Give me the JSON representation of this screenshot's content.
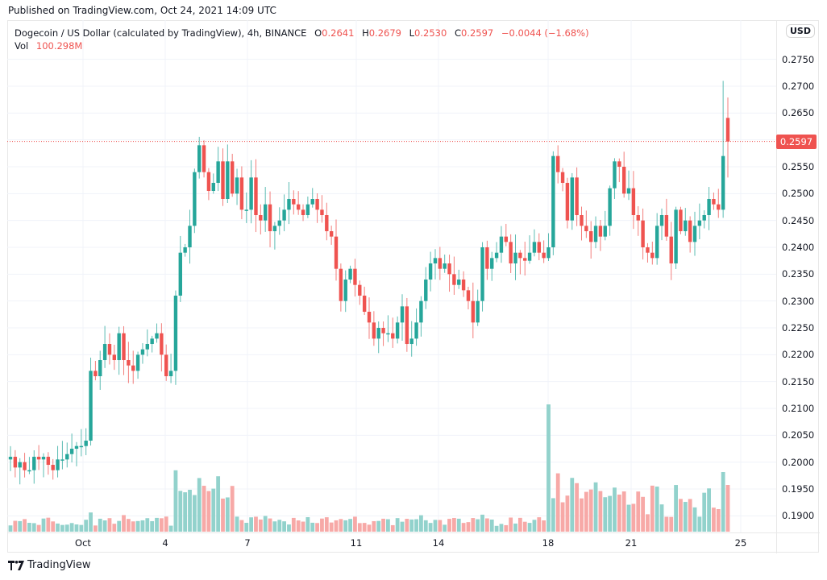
{
  "header": {
    "published": "Published on TradingView.com, Oct 24, 2021 14:09 UTC"
  },
  "legend": {
    "symbol": "Dogecoin / US Dollar (calculated by TradingView), 4h, BINANCE",
    "open_label": "O",
    "open": "0.2641",
    "high_label": "H",
    "high": "0.2679",
    "low_label": "L",
    "low": "0.2530",
    "close_label": "C",
    "close": "0.2597",
    "change": "−0.0044 (−1.68%)",
    "vol_label": "Vol",
    "vol": "100.298M"
  },
  "price_axis": {
    "currency_button": "USD",
    "ticks": [
      "0.2750",
      "0.2700",
      "0.2650",
      "0.2550",
      "0.2500",
      "0.2450",
      "0.2400",
      "0.2350",
      "0.2300",
      "0.2250",
      "0.2200",
      "0.2150",
      "0.2100",
      "0.2050",
      "0.2000",
      "0.1950",
      "0.1900"
    ],
    "last_price": "0.2597"
  },
  "time_axis": {
    "ticks": [
      "Oct",
      "4",
      "7",
      "11",
      "14",
      "18",
      "21",
      "25"
    ]
  },
  "footer": {
    "brand": "TradingView"
  },
  "colors": {
    "up": "#26a69a",
    "down": "#ef5350",
    "up_vol": "#92d2cc",
    "down_vol": "#f7a9a7",
    "grid": "#f0f3fa"
  },
  "chart_data": {
    "type": "candlestick",
    "title": "Dogecoin / US Dollar (calculated by TradingView), 4h, BINANCE",
    "interval": "4h",
    "x_ticks": [
      "Oct",
      "4",
      "7",
      "11",
      "14",
      "18",
      "21",
      "25"
    ],
    "y_ticks": [
      0.19,
      0.195,
      0.2,
      0.205,
      0.21,
      0.215,
      0.22,
      0.225,
      0.23,
      0.235,
      0.24,
      0.245,
      0.25,
      0.255,
      0.26,
      0.265,
      0.27,
      0.275
    ],
    "ylim": [
      0.1875,
      0.2775
    ],
    "last": {
      "open": 0.2641,
      "high": 0.2679,
      "low": 0.253,
      "close": 0.2597,
      "change": -0.0044,
      "change_pct": -1.68,
      "volume": "100.298M"
    },
    "closes": [
      0.201,
      0.199,
      0.2,
      0.1985,
      0.1985,
      0.201,
      0.2005,
      0.201,
      0.1995,
      0.1985,
      0.2005,
      0.2005,
      0.2015,
      0.2025,
      0.203,
      0.203,
      0.204,
      0.217,
      0.216,
      0.219,
      0.222,
      0.22,
      0.219,
      0.224,
      0.219,
      0.218,
      0.217,
      0.22,
      0.221,
      0.222,
      0.223,
      0.224,
      0.22,
      0.216,
      0.217,
      0.231,
      0.239,
      0.24,
      0.244,
      0.254,
      0.259,
      0.254,
      0.2505,
      0.252,
      0.256,
      0.249,
      0.256,
      0.25,
      0.253,
      0.247,
      0.247,
      0.253,
      0.246,
      0.245,
      0.248,
      0.243,
      0.244,
      0.245,
      0.247,
      0.249,
      0.248,
      0.247,
      0.246,
      0.248,
      0.249,
      0.247,
      0.246,
      0.243,
      0.242,
      0.236,
      0.23,
      0.234,
      0.236,
      0.233,
      0.231,
      0.228,
      0.226,
      0.223,
      0.225,
      0.224,
      0.224,
      0.223,
      0.226,
      0.229,
      0.222,
      0.223,
      0.226,
      0.23,
      0.234,
      0.237,
      0.238,
      0.236,
      0.237,
      0.235,
      0.233,
      0.234,
      0.232,
      0.23,
      0.226,
      0.23,
      0.24,
      0.236,
      0.238,
      0.239,
      0.242,
      0.241,
      0.237,
      0.239,
      0.238,
      0.2375,
      0.239,
      0.241,
      0.239,
      0.238,
      0.24,
      0.257,
      0.254,
      0.252,
      0.245,
      0.253,
      0.246,
      0.244,
      0.243,
      0.241,
      0.244,
      0.242,
      0.244,
      0.251,
      0.256,
      0.255,
      0.25,
      0.251,
      0.246,
      0.245,
      0.24,
      0.239,
      0.238,
      0.244,
      0.246,
      0.242,
      0.237,
      0.247,
      0.243,
      0.245,
      0.241,
      0.244,
      0.245,
      0.246,
      0.249,
      0.248,
      0.247,
      0.257,
      0.2597
    ],
    "volume_note": "Volume histogram beneath candles; peak around Oct 18 (~2.2x typical spike), secondary peaks around Oct 4-5"
  }
}
